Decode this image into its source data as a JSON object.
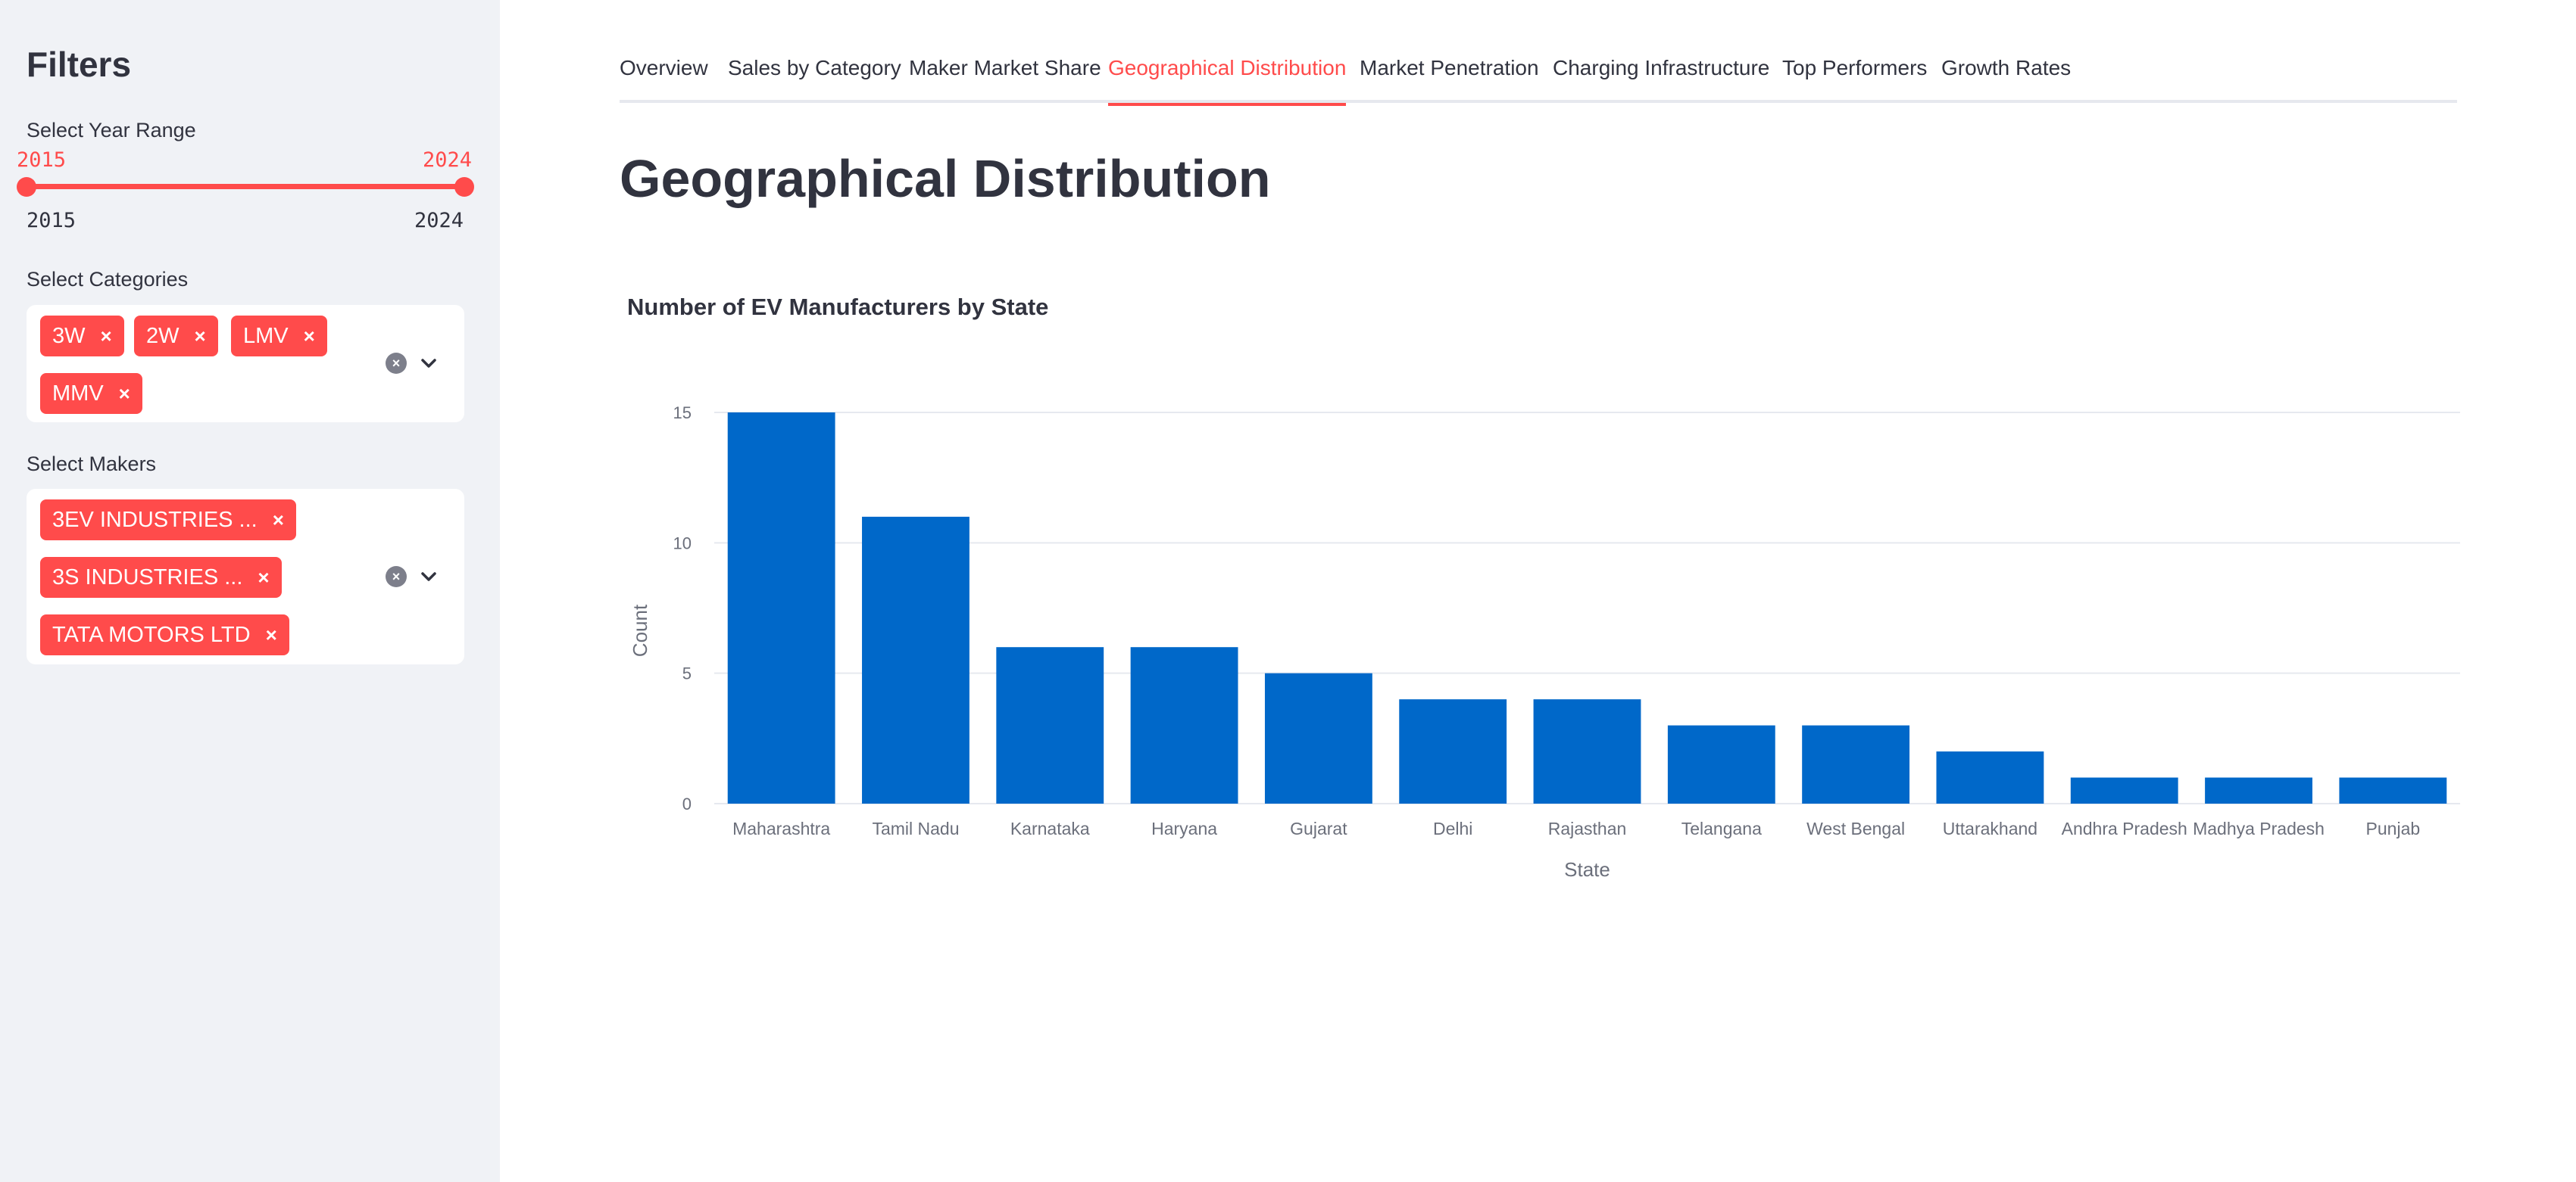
{
  "sidebar": {
    "title": "Filters",
    "year_range": {
      "label": "Select Year Range",
      "min": "2015",
      "max": "2024",
      "selected_start": "2015",
      "selected_end": "2024"
    },
    "categories": {
      "label": "Select Categories",
      "selected": [
        "3W",
        "2W",
        "LMV",
        "MMV"
      ]
    },
    "makers": {
      "label": "Select Makers",
      "selected": [
        "3EV INDUSTRIES ...",
        "3S INDUSTRIES ...",
        "TATA MOTORS LTD"
      ]
    },
    "chip_remove_glyph": "×",
    "clear_glyph": "×"
  },
  "tabs": [
    {
      "label": "Overview",
      "active": false
    },
    {
      "label": "Sales by Category",
      "active": false
    },
    {
      "label": "Maker Market Share",
      "active": false
    },
    {
      "label": "Geographical Distribution",
      "active": true
    },
    {
      "label": "Market Penetration",
      "active": false
    },
    {
      "label": "Charging Infrastructure",
      "active": false
    },
    {
      "label": "Top Performers",
      "active": false
    },
    {
      "label": "Growth Rates",
      "active": false
    }
  ],
  "page": {
    "title": "Geographical Distribution"
  },
  "colors": {
    "accent": "#ff4b4b",
    "bar": "#0068c9",
    "sidebar_bg": "#f0f2f6"
  },
  "chart_data": {
    "type": "bar",
    "title": "Number of EV Manufacturers by State",
    "xlabel": "State",
    "ylabel": "Count",
    "categories": [
      "Maharashtra",
      "Tamil Nadu",
      "Karnataka",
      "Haryana",
      "Gujarat",
      "Delhi",
      "Rajasthan",
      "Telangana",
      "West Bengal",
      "Uttarakhand",
      "Andhra Pradesh",
      "Madhya Pradesh",
      "Punjab"
    ],
    "values": [
      15,
      11,
      6,
      6,
      5,
      4,
      4,
      3,
      3,
      2,
      1,
      1,
      1
    ],
    "ylim": [
      0,
      15
    ],
    "yticks": [
      0,
      5,
      10,
      15
    ],
    "grid": true
  }
}
